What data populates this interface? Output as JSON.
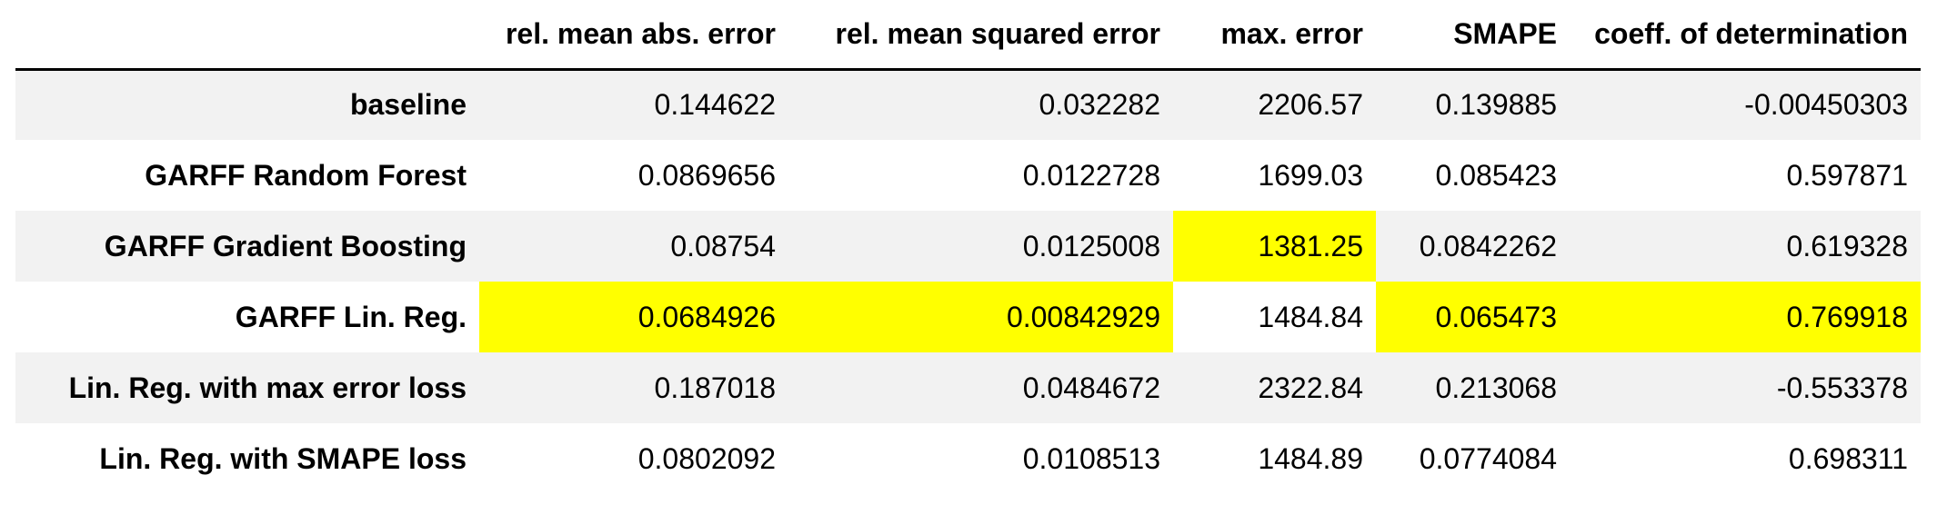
{
  "table": {
    "columns": [
      "",
      "rel. mean abs. error",
      "rel. mean squared error",
      "max. error",
      "SMAPE",
      "coeff. of determination"
    ],
    "highlight_color": "#ffff00",
    "rows": [
      {
        "label": "baseline",
        "cells": [
          {
            "value": "0.144622",
            "highlight": false
          },
          {
            "value": "0.032282",
            "highlight": false
          },
          {
            "value": "2206.57",
            "highlight": false
          },
          {
            "value": "0.139885",
            "highlight": false
          },
          {
            "value": "-0.00450303",
            "highlight": false
          }
        ]
      },
      {
        "label": "GARFF Random Forest",
        "cells": [
          {
            "value": "0.0869656",
            "highlight": false
          },
          {
            "value": "0.0122728",
            "highlight": false
          },
          {
            "value": "1699.03",
            "highlight": false
          },
          {
            "value": "0.085423",
            "highlight": false
          },
          {
            "value": "0.597871",
            "highlight": false
          }
        ]
      },
      {
        "label": "GARFF Gradient Boosting",
        "cells": [
          {
            "value": "0.08754",
            "highlight": false
          },
          {
            "value": "0.0125008",
            "highlight": false
          },
          {
            "value": "1381.25",
            "highlight": true
          },
          {
            "value": "0.0842262",
            "highlight": false
          },
          {
            "value": "0.619328",
            "highlight": false
          }
        ]
      },
      {
        "label": "GARFF Lin. Reg.",
        "cells": [
          {
            "value": "0.0684926",
            "highlight": true
          },
          {
            "value": "0.00842929",
            "highlight": true
          },
          {
            "value": "1484.84",
            "highlight": false
          },
          {
            "value": "0.065473",
            "highlight": true
          },
          {
            "value": "0.769918",
            "highlight": true
          }
        ]
      },
      {
        "label": "Lin. Reg. with max error loss",
        "cells": [
          {
            "value": "0.187018",
            "highlight": false
          },
          {
            "value": "0.0484672",
            "highlight": false
          },
          {
            "value": "2322.84",
            "highlight": false
          },
          {
            "value": "0.213068",
            "highlight": false
          },
          {
            "value": "-0.553378",
            "highlight": false
          }
        ]
      },
      {
        "label": "Lin. Reg. with SMAPE loss",
        "cells": [
          {
            "value": "0.0802092",
            "highlight": false
          },
          {
            "value": "0.0108513",
            "highlight": false
          },
          {
            "value": "1484.89",
            "highlight": false
          },
          {
            "value": "0.0774084",
            "highlight": false
          },
          {
            "value": "0.698311",
            "highlight": false
          }
        ]
      }
    ]
  }
}
